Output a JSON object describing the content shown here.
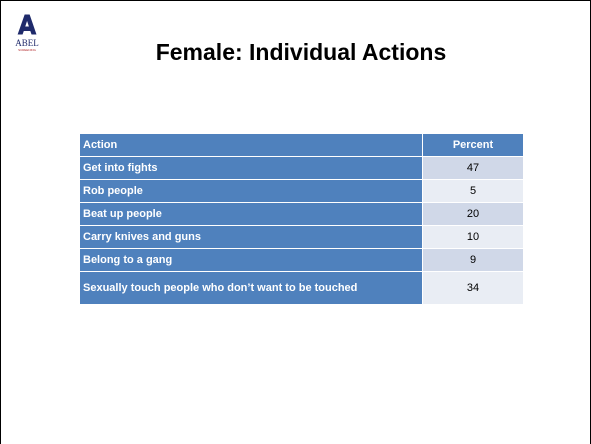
{
  "logo": {
    "name": "ABEL",
    "tagline": "SCREENING"
  },
  "title": "Female: Individual Actions",
  "table": {
    "header": [
      "Action",
      "Percent"
    ],
    "rows": [
      [
        "Get into fights",
        47
      ],
      [
        "Rob people",
        5
      ],
      [
        "Beat up people",
        20
      ],
      [
        "Carry knives and guns",
        10
      ],
      [
        "Belong to a gang",
        9
      ],
      [
        "Sexually touch people who don’t want to be touched",
        34
      ]
    ]
  }
}
